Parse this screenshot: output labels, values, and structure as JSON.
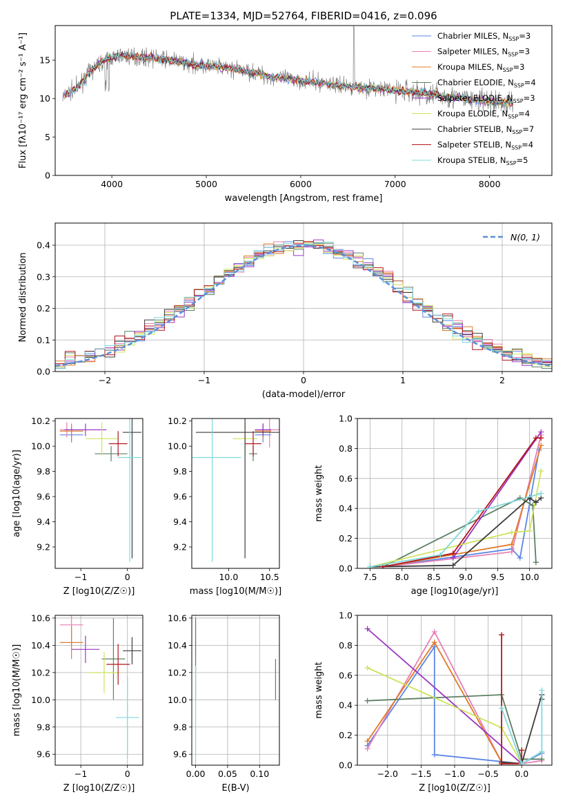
{
  "chart_data": [
    {
      "id": "spectrum",
      "type": "line",
      "title": "PLATE=1334, MJD=52764, FIBERID=0416, z=0.096",
      "xlabel": "wavelength [Angstrom, rest frame]",
      "ylabel": "Flux [fλ10⁻¹⁷ erg cm⁻² s⁻¹ A⁻¹]",
      "xlim": [
        3400,
        8660
      ],
      "ylim": [
        0,
        19.5
      ],
      "xticks": [
        4000,
        5000,
        6000,
        7000,
        8000
      ],
      "yticks": [
        0,
        5,
        10,
        15
      ],
      "legend_position": "right",
      "legend": [
        {
          "label": "Chabrier MILES, N",
          "sub": "SSP",
          "tail": "=3",
          "color": "#5b86e5"
        },
        {
          "label": "Salpeter MILES, N",
          "sub": "SSP",
          "tail": "=3",
          "color": "#e77fb4"
        },
        {
          "label": "Kroupa MILES, N",
          "sub": "SSP",
          "tail": "=3",
          "color": "#e07a26"
        },
        {
          "label": "Chabrier ELODIE, N",
          "sub": "SSP",
          "tail": "=4",
          "color": "#5b7f62"
        },
        {
          "label": "Salpeter ELODIE, N",
          "sub": "SSP",
          "tail": "=3",
          "color": "#9a34c2"
        },
        {
          "label": "Kroupa ELODIE, N",
          "sub": "SSP",
          "tail": "=4",
          "color": "#cde35a"
        },
        {
          "label": "Chabrier STELIB, N",
          "sub": "SSP",
          "tail": "=7",
          "color": "#3b3b3b"
        },
        {
          "label": "Salpeter STELIB, N",
          "sub": "SSP",
          "tail": "=4",
          "color": "#b0151b"
        },
        {
          "label": "Kroupa STELIB, N",
          "sub": "SSP",
          "tail": "=5",
          "color": "#7fd8dc"
        }
      ],
      "data_color": "#808080",
      "continuum": {
        "x": [
          3480,
          3550,
          3650,
          3750,
          3850,
          3950,
          4100,
          4300,
          4500,
          4700,
          4900,
          5100,
          5300,
          5500,
          5700,
          5900,
          6100,
          6300,
          6500,
          6700,
          6900,
          7100,
          7300,
          7500,
          7700,
          7900,
          8100,
          8250
        ],
        "y": [
          10.2,
          10.8,
          11.6,
          13.2,
          14.4,
          15.2,
          15.6,
          15.4,
          15.2,
          14.8,
          14.4,
          14.2,
          13.8,
          13.4,
          12.8,
          12.5,
          12.2,
          11.9,
          11.6,
          11.4,
          11.2,
          11.0,
          10.7,
          10.3,
          10.0,
          9.7,
          9.5,
          9.4
        ]
      }
    },
    {
      "id": "residuals",
      "type": "histogram",
      "xlabel": "(data-model)/error",
      "ylabel": "Normed distribution",
      "xlim": [
        -2.5,
        2.5
      ],
      "ylim": [
        0,
        0.47
      ],
      "xticks": [
        -2,
        -1,
        0,
        1,
        2
      ],
      "yticks": [
        0.0,
        0.1,
        0.2,
        0.3,
        0.4
      ],
      "legend": {
        "label": "N(0, 1)",
        "color": "#5b8ed6",
        "position": "top-right"
      }
    },
    {
      "id": "age-vs-Z",
      "type": "errorbar",
      "xlabel": "Z [log10(Z/Z☉)]",
      "ylabel": "age  [log10(age/yr)]",
      "xlim": [
        -1.55,
        0.33
      ],
      "ylim": [
        9.03,
        10.22
      ],
      "xticks": [
        -1,
        0
      ],
      "yticks": [
        9.2,
        9.4,
        9.6,
        9.8,
        10.0,
        10.2
      ],
      "points": [
        {
          "x": -1.2,
          "y": 10.09,
          "xerr": 0.25,
          "yerr": 0.06,
          "color": "#5b86e5"
        },
        {
          "x": -1.3,
          "y": 10.13,
          "xerr": 0.15,
          "yerr": 0.06,
          "color": "#e77fb4"
        },
        {
          "x": -1.2,
          "y": 10.12,
          "xerr": 0.25,
          "yerr": 0.06,
          "color": "#e07a26"
        },
        {
          "x": -0.35,
          "y": 9.94,
          "xerr": 0.35,
          "yerr": 0.06,
          "color": "#5b7f62"
        },
        {
          "x": -0.9,
          "y": 10.13,
          "xerr": 0.45,
          "yerr": 0.05,
          "color": "#9a34c2"
        },
        {
          "x": -0.55,
          "y": 10.06,
          "xerr": 0.35,
          "yerr": 0.13,
          "color": "#cde35a"
        },
        {
          "x": 0.1,
          "y": 10.11,
          "xerr": 0.2,
          "yerr": 1.0,
          "color": "#3b3b3b"
        },
        {
          "x": -0.2,
          "y": 10.02,
          "xerr": 0.2,
          "yerr": 0.1,
          "color": "#b0151b"
        },
        {
          "x": 0.05,
          "y": 9.91,
          "xerr": 0.25,
          "yerr": 0.83,
          "color": "#7fd8dc"
        }
      ]
    },
    {
      "id": "age-vs-mass",
      "type": "errorbar",
      "xlabel": "mass [log10(M/M☉)]",
      "ylabel": "",
      "xlim": [
        9.55,
        10.62
      ],
      "ylim": [
        9.03,
        10.22
      ],
      "xticks": [
        10.0,
        10.5
      ],
      "yticks": [
        9.2,
        9.4,
        9.6,
        9.8,
        10.0,
        10.2
      ],
      "points": [
        {
          "x": 10.42,
          "y": 10.09,
          "xerr": 0.1,
          "yerr": 0.06,
          "color": "#5b86e5"
        },
        {
          "x": 10.5,
          "y": 10.13,
          "xerr": 0.12,
          "yerr": 0.14,
          "color": "#e77fb4"
        },
        {
          "x": 10.42,
          "y": 10.12,
          "xerr": 0.1,
          "yerr": 0.06,
          "color": "#e07a26"
        },
        {
          "x": 10.3,
          "y": 9.94,
          "xerr": 0.05,
          "yerr": 0.06,
          "color": "#5b7f62"
        },
        {
          "x": 10.42,
          "y": 10.13,
          "xerr": 0.1,
          "yerr": 0.05,
          "color": "#9a34c2"
        },
        {
          "x": 10.2,
          "y": 10.06,
          "xerr": 0.15,
          "yerr": 0.13,
          "color": "#cde35a"
        },
        {
          "x": 10.2,
          "y": 10.11,
          "xerr": 0.6,
          "yerr": 1.0,
          "color": "#3b3b3b"
        },
        {
          "x": 10.3,
          "y": 10.02,
          "xerr": 0.1,
          "yerr": 0.1,
          "color": "#b0151b"
        },
        {
          "x": 9.8,
          "y": 9.91,
          "xerr": 0.35,
          "yerr": 0.83,
          "color": "#7fd8dc"
        }
      ]
    },
    {
      "id": "weight-vs-age",
      "type": "line",
      "xlabel": "age  [log10(age/yr)]",
      "ylabel": "mass weight",
      "xlim": [
        7.3,
        10.35
      ],
      "ylim": [
        0,
        1.0
      ],
      "xticks": [
        7.5,
        8.0,
        8.5,
        9.0,
        9.5,
        10.0
      ],
      "yticks": [
        0.0,
        0.2,
        0.4,
        0.6,
        0.8,
        1.0
      ],
      "series": [
        {
          "color": "#5b86e5",
          "x": [
            7.7,
            9.72,
            9.85,
            10.15
          ],
          "y": [
            0.01,
            0.13,
            0.07,
            0.79
          ]
        },
        {
          "color": "#e77fb4",
          "x": [
            7.7,
            9.72,
            10.18
          ],
          "y": [
            0.01,
            0.11,
            0.89
          ]
        },
        {
          "color": "#e07a26",
          "x": [
            7.7,
            9.72,
            10.18
          ],
          "y": [
            0.01,
            0.16,
            0.82
          ]
        },
        {
          "color": "#5b7f62",
          "x": [
            7.7,
            9.85,
            10.05,
            10.1
          ],
          "y": [
            0.01,
            0.47,
            0.42,
            0.04
          ]
        },
        {
          "color": "#9a34c2",
          "x": [
            8.8,
            10.18
          ],
          "y": [
            0.07,
            0.91
          ]
        },
        {
          "color": "#cde35a",
          "x": [
            7.5,
            9.72,
            10.0,
            10.18
          ],
          "y": [
            0.01,
            0.24,
            0.25,
            0.65
          ]
        },
        {
          "color": "#3b3b3b",
          "x": [
            7.5,
            8.8,
            10.0,
            10.1,
            10.18
          ],
          "y": [
            0.01,
            0.02,
            0.47,
            0.44,
            0.47
          ]
        },
        {
          "color": "#b0151b",
          "x": [
            7.7,
            8.8,
            10.1,
            10.18
          ],
          "y": [
            0.01,
            0.1,
            0.87,
            0.87
          ]
        },
        {
          "color": "#7fd8dc",
          "x": [
            7.5,
            8.6,
            9.2,
            10.18
          ],
          "y": [
            0.01,
            0.09,
            0.38,
            0.5
          ]
        }
      ]
    },
    {
      "id": "mass-vs-Z",
      "type": "errorbar",
      "xlabel": "Z [log10(Z/Z☉)]",
      "ylabel": "mass [log10(M/M☉)]",
      "xlim": [
        -1.55,
        0.33
      ],
      "ylim": [
        9.52,
        10.62
      ],
      "xticks": [
        -1,
        0
      ],
      "yticks": [
        9.6,
        9.8,
        10.0,
        10.2,
        10.4,
        10.6
      ],
      "points": [
        {
          "x": -1.2,
          "y": 10.42,
          "xerr": 0.25,
          "yerr": 0.03,
          "color": "#5b86e5"
        },
        {
          "x": -1.2,
          "y": 10.55,
          "xerr": 0.25,
          "yerr": 0.12,
          "color": "#e77fb4"
        },
        {
          "x": -1.2,
          "y": 10.42,
          "xerr": 0.25,
          "yerr": 0.12,
          "color": "#e07a26"
        },
        {
          "x": -0.3,
          "y": 10.3,
          "xerr": 0.25,
          "yerr": 0.3,
          "color": "#5b7f62"
        },
        {
          "x": -0.9,
          "y": 10.37,
          "xerr": 0.3,
          "yerr": 0.1,
          "color": "#9a34c2"
        },
        {
          "x": -0.5,
          "y": 10.2,
          "xerr": 0.35,
          "yerr": 0.15,
          "color": "#cde35a"
        },
        {
          "x": 0.1,
          "y": 10.36,
          "xerr": 0.2,
          "yerr": 0.1,
          "color": "#3b3b3b"
        },
        {
          "x": -0.2,
          "y": 10.26,
          "xerr": 0.25,
          "yerr": 0.15,
          "color": "#b0151b"
        },
        {
          "x": 0.0,
          "y": 9.87,
          "xerr": 0.25,
          "yerr": 0.3,
          "color": "#7fd8dc"
        }
      ]
    },
    {
      "id": "ebv",
      "type": "errorbar",
      "xlabel": "E(B-V)",
      "ylabel": "",
      "xlim": [
        -0.006,
        0.131
      ],
      "ylim": [
        9.52,
        10.62
      ],
      "xticks": [
        0.0,
        0.05,
        0.1
      ],
      "yticks": [
        9.6,
        9.8,
        10.0,
        10.2,
        10.4,
        10.6
      ],
      "points": [
        {
          "x": 0.0,
          "y": 10.45,
          "xerr": 0.0,
          "yerr": 0.12,
          "color": "#e77fb4"
        },
        {
          "x": 0.0,
          "y": 10.3,
          "xerr": 0.0,
          "yerr": 0.3,
          "color": "#5b7f62"
        },
        {
          "x": 0.0,
          "y": 9.9,
          "xerr": 0.0,
          "yerr": 0.35,
          "color": "#7fd8dc"
        },
        {
          "x": 0.125,
          "y": 10.15,
          "xerr": 0.0,
          "yerr": 0.15,
          "color": "#5b7f62"
        }
      ]
    },
    {
      "id": "weight-vs-Z",
      "type": "line",
      "xlabel": "Z [log10(Z/Z☉)]",
      "ylabel": "mass weight",
      "xlim": [
        -2.45,
        0.45
      ],
      "ylim": [
        0,
        1.0
      ],
      "xticks": [
        -2.0,
        -1.5,
        -1.0,
        -0.5,
        0.0
      ],
      "yticks": [
        0.0,
        0.2,
        0.4,
        0.6,
        0.8,
        1.0
      ],
      "series": [
        {
          "color": "#5b86e5",
          "x": [
            -2.3,
            -1.3,
            -1.3,
            0.0,
            0.3
          ],
          "y": [
            0.13,
            0.79,
            0.07,
            0.01,
            0.08
          ]
        },
        {
          "color": "#e77fb4",
          "x": [
            -2.3,
            -1.3,
            -0.3,
            0.0,
            0.3
          ],
          "y": [
            0.11,
            0.89,
            0.02,
            0.01,
            0.03
          ]
        },
        {
          "color": "#e07a26",
          "x": [
            -2.3,
            -1.3,
            -0.3,
            0.0
          ],
          "y": [
            0.16,
            0.82,
            0.02,
            0.01
          ]
        },
        {
          "color": "#5b7f62",
          "x": [
            -2.3,
            -0.3,
            0.0,
            0.3
          ],
          "y": [
            0.43,
            0.47,
            0.04,
            0.04
          ]
        },
        {
          "color": "#9a34c2",
          "x": [
            -2.3,
            0.0
          ],
          "y": [
            0.91,
            0.01
          ]
        },
        {
          "color": "#cde35a",
          "x": [
            -2.3,
            -0.3,
            0.0,
            0.3
          ],
          "y": [
            0.65,
            0.25,
            0.01,
            0.09
          ]
        },
        {
          "color": "#3b3b3b",
          "x": [
            -0.3,
            0.0,
            0.3,
            0.3
          ],
          "y": [
            0.02,
            0.01,
            0.47,
            0.44
          ]
        },
        {
          "color": "#b0151b",
          "x": [
            -0.3,
            -0.3,
            0.0,
            0.0
          ],
          "y": [
            0.87,
            0.01,
            0.01,
            0.1
          ]
        },
        {
          "color": "#7fd8dc",
          "x": [
            -0.3,
            0.0,
            0.3,
            0.3
          ],
          "y": [
            0.38,
            0.01,
            0.09,
            0.5
          ]
        }
      ]
    }
  ]
}
